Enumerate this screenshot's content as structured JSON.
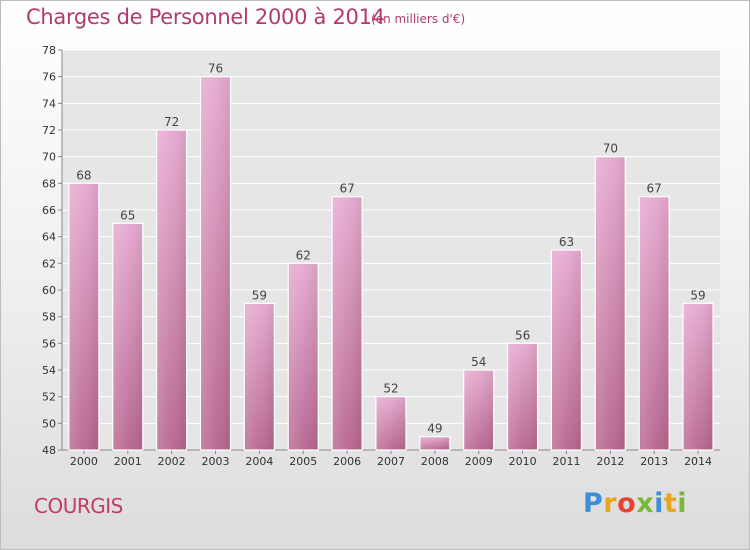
{
  "title": "Charges de Personnel 2000 à 2014",
  "subtitle": "(en milliers d'€)",
  "place": "COURGIS",
  "logo": {
    "letters": [
      "P",
      "r",
      "o",
      "x",
      "i",
      "t",
      "i"
    ],
    "colors": [
      "#3a8fd6",
      "#e6a51a",
      "#e8432f",
      "#7ab836",
      "#3a8fd6",
      "#e6a51a",
      "#7ab836"
    ]
  },
  "colors": {
    "bar_light": "#e6a9d0",
    "bar_dark": "#b7668f",
    "title": "#b13a6f",
    "place": "#c23d63"
  },
  "chart_data": {
    "type": "bar",
    "title": "Charges de Personnel 2000 à 2014",
    "subtitle": "(en milliers d'€)",
    "categories": [
      "2000",
      "2001",
      "2002",
      "2003",
      "2004",
      "2005",
      "2006",
      "2007",
      "2008",
      "2009",
      "2010",
      "2011",
      "2012",
      "2013",
      "2014"
    ],
    "values": [
      68,
      65,
      72,
      76,
      59,
      62,
      67,
      52,
      49,
      54,
      56,
      63,
      70,
      67,
      59
    ],
    "ylim": [
      48,
      78
    ],
    "yticks": [
      48,
      50,
      52,
      54,
      56,
      58,
      60,
      62,
      64,
      66,
      68,
      70,
      72,
      74,
      76,
      78
    ],
    "grid": true,
    "data_labels": true
  }
}
